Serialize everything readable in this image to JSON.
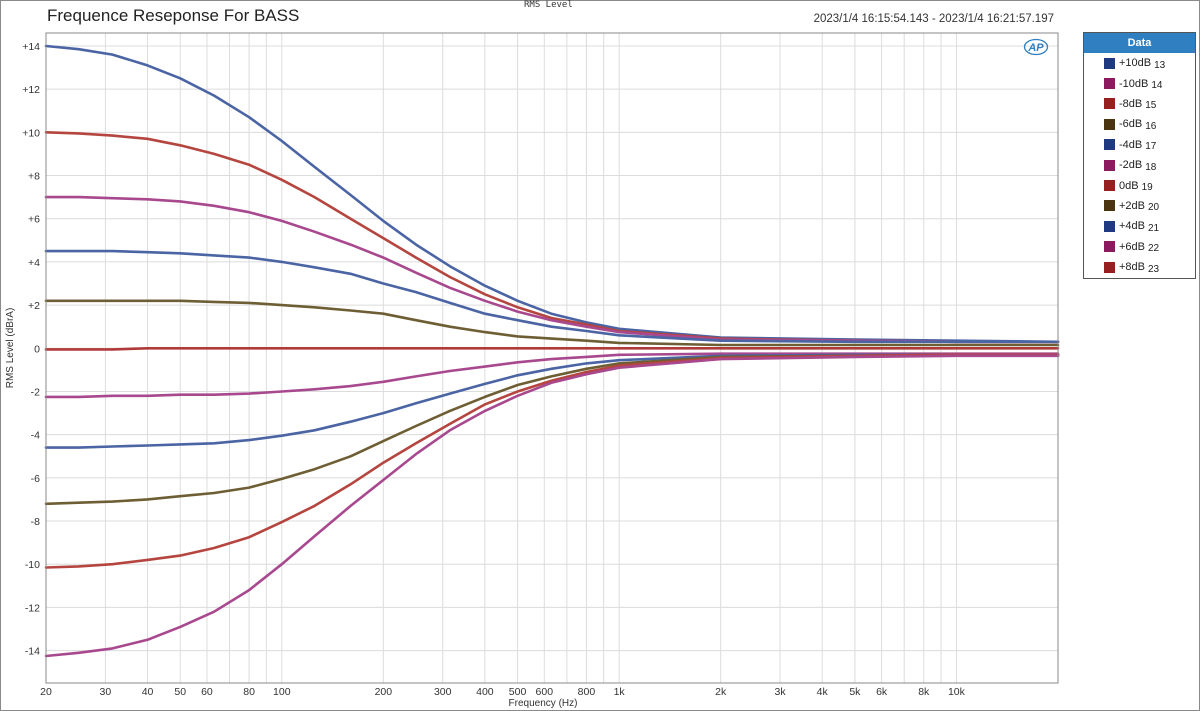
{
  "header": {
    "title": "Frequence Reseponse For BASS",
    "top_label": "RMS Level",
    "timestamp": "2023/1/4 16:15:54.143 - 2023/1/4 16:21:57.197",
    "logo": "AP"
  },
  "legend": {
    "title": "Data",
    "items": [
      {
        "label": "+10dB",
        "num": "13",
        "color": "#1f3a80"
      },
      {
        "label": "-10dB",
        "num": "14",
        "color": "#8b1a5e"
      },
      {
        "label": "-8dB",
        "num": "15",
        "color": "#962020"
      },
      {
        "label": "-6dB",
        "num": "16",
        "color": "#4a3510"
      },
      {
        "label": "-4dB",
        "num": "17",
        "color": "#1f3a80"
      },
      {
        "label": "-2dB",
        "num": "18",
        "color": "#8b1a5e"
      },
      {
        "label": "0dB",
        "num": "19",
        "color": "#962020"
      },
      {
        "label": "+2dB",
        "num": "20",
        "color": "#4a3510"
      },
      {
        "label": "+4dB",
        "num": "21",
        "color": "#1f3a80"
      },
      {
        "label": "+6dB",
        "num": "22",
        "color": "#8b1a5e"
      },
      {
        "label": "+8dB",
        "num": "23",
        "color": "#962020"
      }
    ]
  },
  "chart_data": {
    "type": "line",
    "title": "Frequence Reseponse For BASS",
    "xlabel": "Frequency (Hz)",
    "ylabel": "RMS Level (dBrA)",
    "x_scale": "log",
    "xlim": [
      20,
      20000
    ],
    "ylim": [
      -15.5,
      14.6
    ],
    "grid": true,
    "legend_position": "right",
    "x_ticks": [
      20,
      30,
      40,
      50,
      60,
      80,
      100,
      200,
      300,
      400,
      500,
      600,
      800,
      1000,
      2000,
      3000,
      4000,
      5000,
      6000,
      8000,
      10000
    ],
    "x_tick_labels": [
      "20",
      "30",
      "40",
      "50",
      "60",
      "80",
      "100",
      "200",
      "300",
      "400",
      "500",
      "600",
      "800",
      "1k",
      "2k",
      "3k",
      "4k",
      "5k",
      "6k",
      "8k",
      "10k"
    ],
    "y_ticks": [
      14,
      12,
      10,
      8,
      6,
      4,
      2,
      0,
      -2,
      -4,
      -6,
      -8,
      -10,
      -12,
      -14
    ],
    "y_tick_labels": [
      "+14",
      "+12",
      "+10",
      "+8",
      "+6",
      "+4",
      "+2",
      "0",
      "-2",
      "-4",
      "-6",
      "-8",
      "-10",
      "-12",
      "-14"
    ],
    "x": [
      20,
      25,
      31.5,
      40,
      50,
      63,
      80,
      100,
      125,
      160,
      200,
      250,
      315,
      400,
      500,
      630,
      800,
      1000,
      2000,
      5000,
      10000,
      20000
    ],
    "series": [
      {
        "name": "+10dB 13",
        "color": "#4a64a4",
        "values": [
          14.0,
          13.85,
          13.6,
          13.1,
          12.5,
          11.7,
          10.7,
          9.6,
          8.4,
          7.1,
          5.9,
          4.8,
          3.8,
          2.9,
          2.2,
          1.6,
          1.2,
          0.9,
          0.5,
          0.4,
          0.35,
          0.3
        ]
      },
      {
        "name": "+8dB 23",
        "color": "#b5453f",
        "values": [
          10.0,
          9.95,
          9.85,
          9.7,
          9.4,
          9.0,
          8.5,
          7.8,
          7.0,
          6.0,
          5.1,
          4.2,
          3.3,
          2.5,
          1.9,
          1.4,
          1.1,
          0.8,
          0.45,
          0.35,
          0.3,
          0.3
        ]
      },
      {
        "name": "+6dB 22",
        "color": "#a8488e",
        "values": [
          7.0,
          7.0,
          6.95,
          6.9,
          6.8,
          6.6,
          6.3,
          5.9,
          5.4,
          4.8,
          4.2,
          3.5,
          2.8,
          2.2,
          1.7,
          1.3,
          1.0,
          0.75,
          0.4,
          0.35,
          0.3,
          0.3
        ]
      },
      {
        "name": "+4dB 21",
        "color": "#4a64a4",
        "values": [
          4.5,
          4.5,
          4.5,
          4.45,
          4.4,
          4.3,
          4.2,
          4.0,
          3.75,
          3.45,
          3.0,
          2.6,
          2.1,
          1.6,
          1.3,
          1.0,
          0.8,
          0.6,
          0.35,
          0.3,
          0.3,
          0.3
        ]
      },
      {
        "name": "+2dB 20",
        "color": "#6e5e34",
        "values": [
          2.2,
          2.2,
          2.2,
          2.2,
          2.2,
          2.15,
          2.1,
          2.0,
          1.9,
          1.75,
          1.6,
          1.3,
          1.0,
          0.75,
          0.55,
          0.45,
          0.35,
          0.25,
          0.15,
          0.15,
          0.15,
          0.15
        ]
      },
      {
        "name": "0dB 19",
        "color": "#b03a3a",
        "values": [
          -0.05,
          -0.05,
          -0.05,
          0,
          0,
          0,
          0,
          0,
          0,
          0,
          0,
          0,
          0,
          0,
          0,
          0,
          0,
          0,
          0,
          0,
          0,
          0
        ]
      },
      {
        "name": "-2dB 18",
        "color": "#a8488e",
        "values": [
          -2.25,
          -2.25,
          -2.2,
          -2.2,
          -2.15,
          -2.15,
          -2.1,
          -2.0,
          -1.9,
          -1.75,
          -1.55,
          -1.3,
          -1.05,
          -0.85,
          -0.65,
          -0.5,
          -0.4,
          -0.3,
          -0.25,
          -0.25,
          -0.25,
          -0.25
        ]
      },
      {
        "name": "-4dB 17",
        "color": "#4a64a4",
        "values": [
          -4.6,
          -4.6,
          -4.55,
          -4.5,
          -4.45,
          -4.4,
          -4.25,
          -4.05,
          -3.8,
          -3.4,
          -3.0,
          -2.55,
          -2.1,
          -1.65,
          -1.25,
          -0.95,
          -0.7,
          -0.55,
          -0.35,
          -0.3,
          -0.3,
          -0.3
        ]
      },
      {
        "name": "-6dB 16",
        "color": "#6e5e34",
        "values": [
          -7.2,
          -7.15,
          -7.1,
          -7.0,
          -6.85,
          -6.7,
          -6.45,
          -6.05,
          -5.6,
          -5.0,
          -4.3,
          -3.6,
          -2.9,
          -2.25,
          -1.7,
          -1.3,
          -0.95,
          -0.7,
          -0.4,
          -0.35,
          -0.3,
          -0.3
        ]
      },
      {
        "name": "-8dB 15",
        "color": "#b5453f",
        "values": [
          -10.15,
          -10.1,
          -10.0,
          -9.8,
          -9.6,
          -9.25,
          -8.75,
          -8.05,
          -7.3,
          -6.3,
          -5.3,
          -4.4,
          -3.5,
          -2.6,
          -2.0,
          -1.5,
          -1.1,
          -0.8,
          -0.45,
          -0.35,
          -0.3,
          -0.3
        ]
      },
      {
        "name": "-10dB 14",
        "color": "#a8488e",
        "values": [
          -14.25,
          -14.1,
          -13.9,
          -13.5,
          -12.9,
          -12.2,
          -11.2,
          -10.0,
          -8.7,
          -7.3,
          -6.1,
          -4.9,
          -3.8,
          -2.9,
          -2.2,
          -1.6,
          -1.2,
          -0.9,
          -0.5,
          -0.4,
          -0.35,
          -0.35
        ]
      }
    ]
  }
}
